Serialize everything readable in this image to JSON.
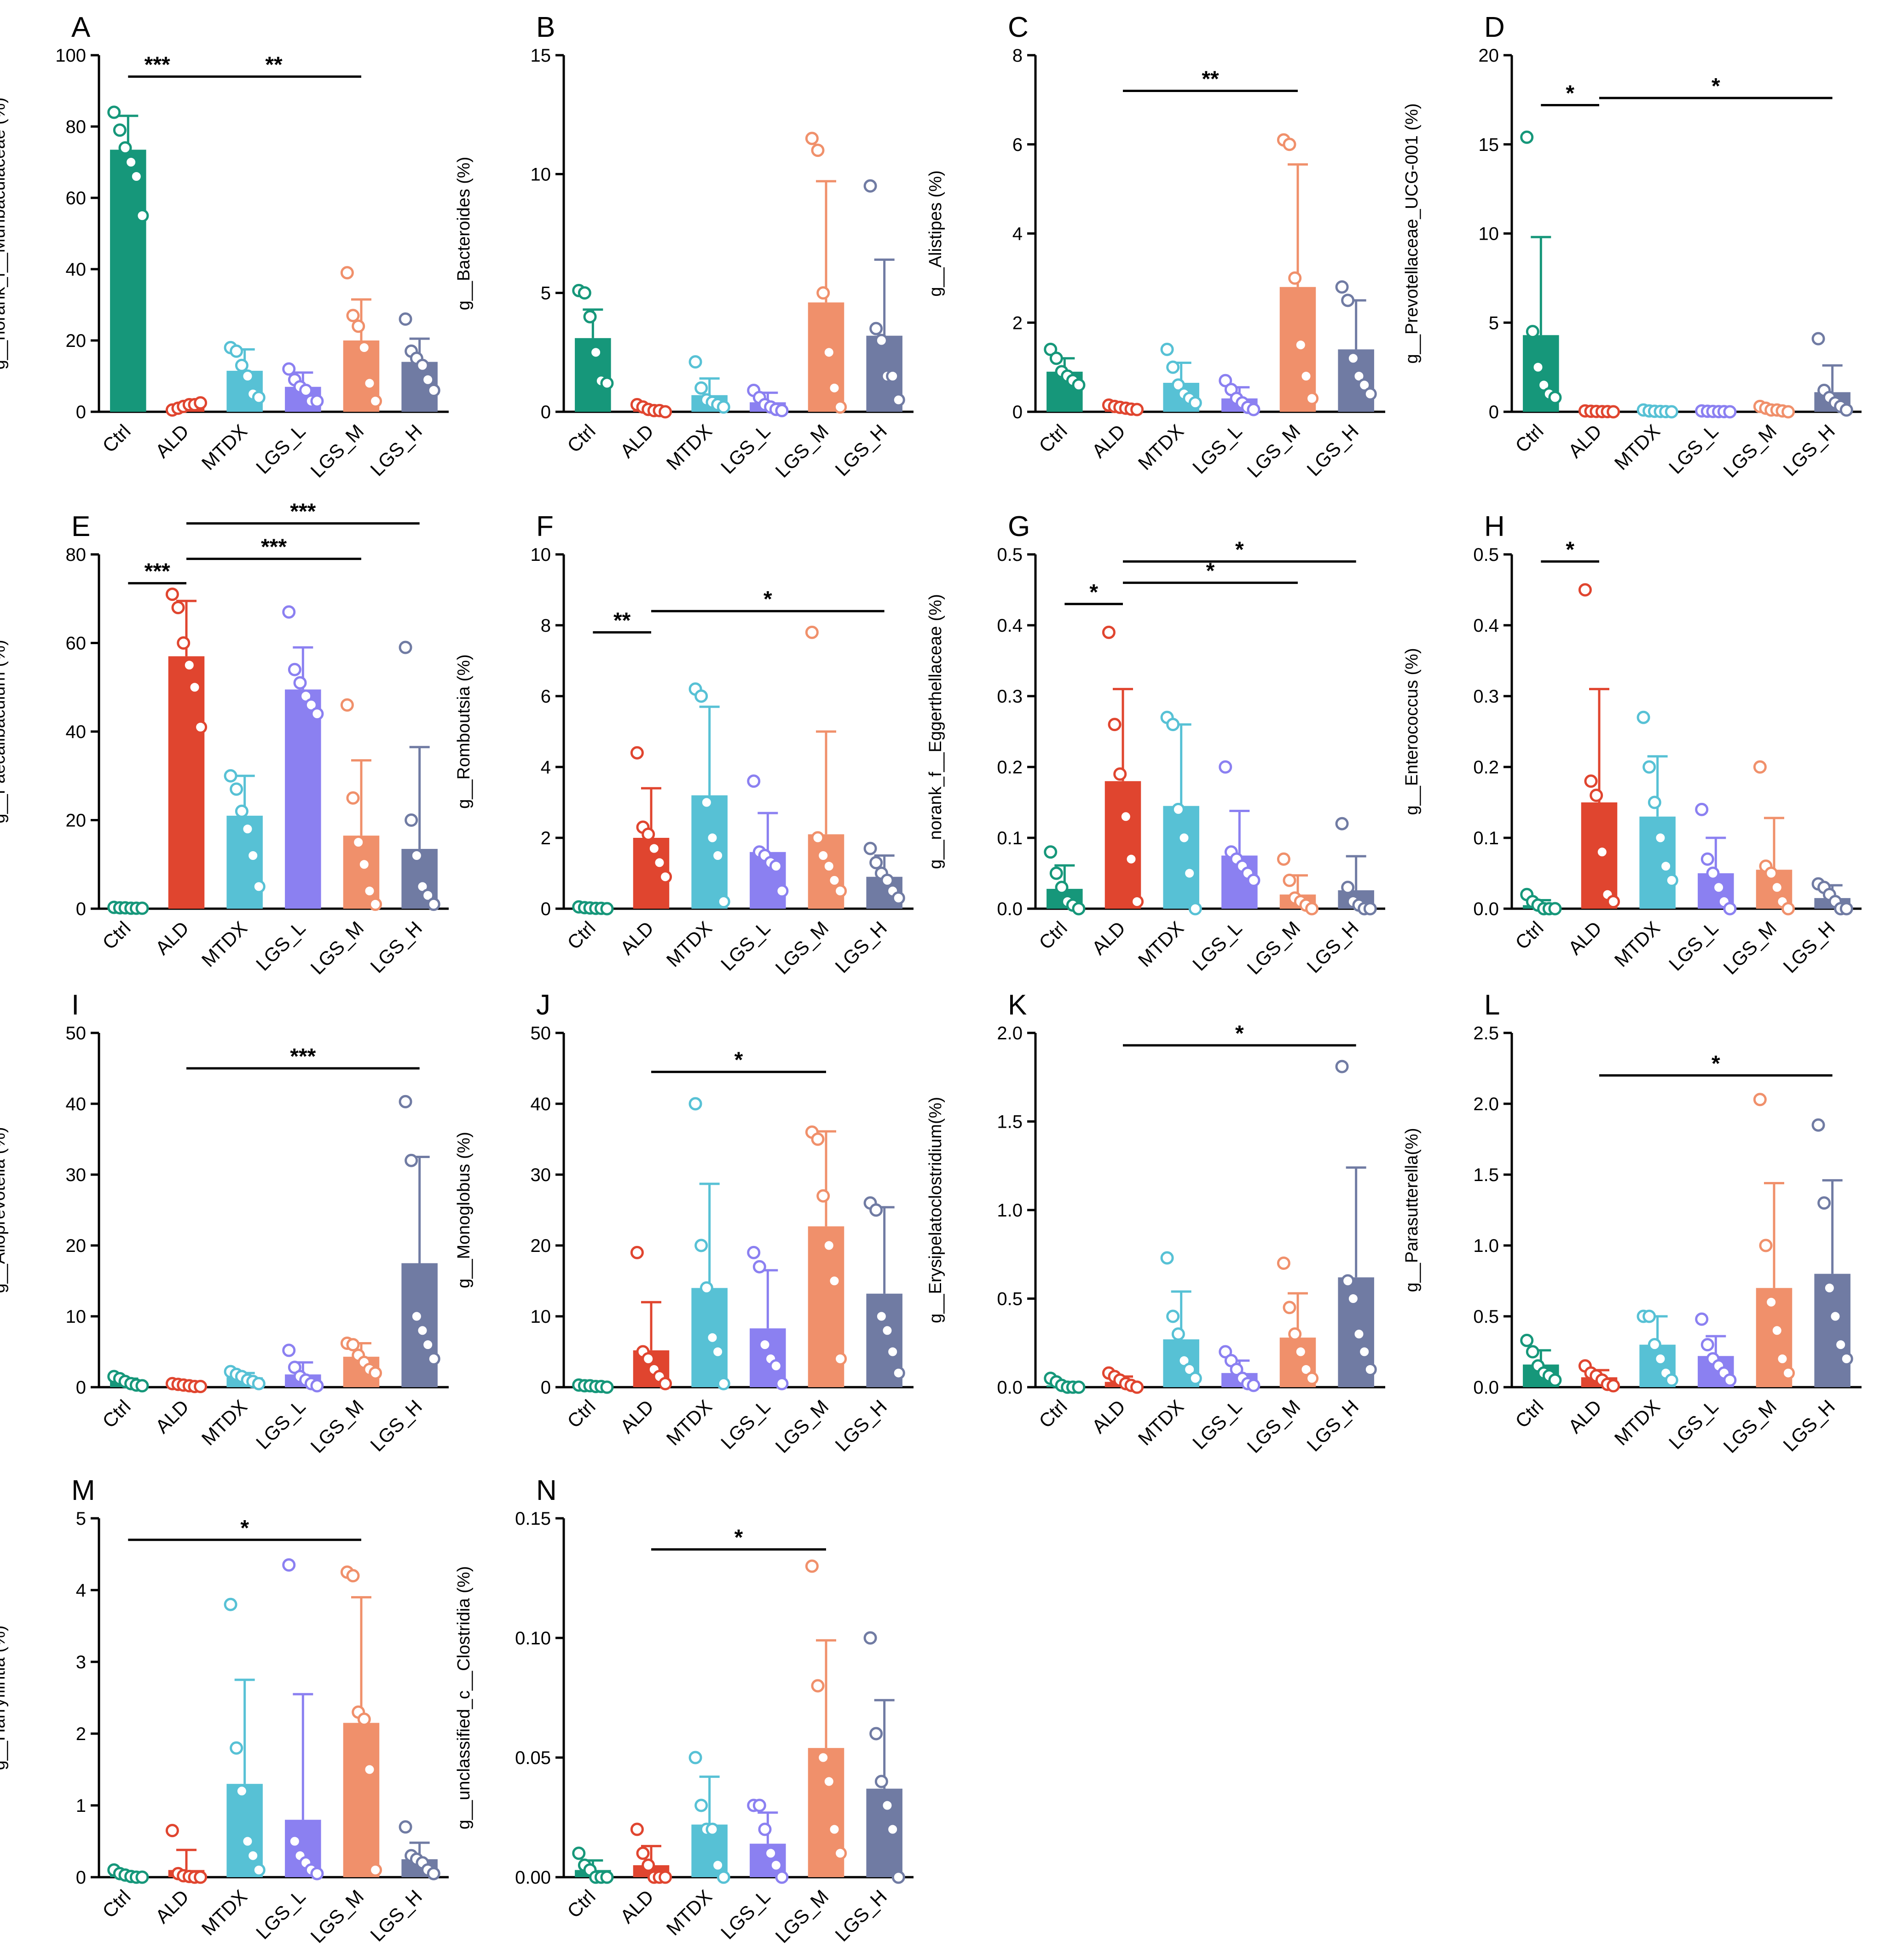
{
  "groups": [
    "Ctrl",
    "ALD",
    "MTDX",
    "LGS_L",
    "LGS_M",
    "LGS_H"
  ],
  "colors": {
    "Ctrl": "#16977A",
    "ALD": "#E0452F",
    "MTDX": "#57C1D5",
    "LGS_L": "#8B80F1",
    "LGS_M": "#F0906B",
    "LGS_H": "#707BA3",
    "axis": "#000000"
  },
  "chart_data": [
    {
      "panel": "A",
      "type": "bar",
      "ylabel": "g__norank_f__Muribaculaceae (%)",
      "ylim": [
        0,
        100
      ],
      "yticks": [
        "0",
        "20",
        "40",
        "60",
        "80",
        "100"
      ],
      "means": [
        73.5,
        1.5,
        11.5,
        7.0,
        20.0,
        14.0
      ],
      "sds": [
        9.5,
        0.8,
        6.0,
        4.0,
        11.5,
        6.5
      ],
      "points": [
        [
          84,
          79,
          74,
          70,
          66,
          55
        ],
        [
          0.5,
          1,
          1.5,
          2,
          2,
          2.5
        ],
        [
          18,
          17,
          13,
          10,
          5,
          4
        ],
        [
          12,
          9,
          7,
          6,
          3,
          3
        ],
        [
          39,
          27,
          24,
          18,
          8,
          3
        ],
        [
          26,
          17,
          15,
          13,
          9,
          6
        ]
      ],
      "sig": [
        {
          "from": 0,
          "to": 1,
          "label": "***",
          "y": 94
        },
        {
          "from": 1,
          "to": 4,
          "label": "**",
          "y": 94
        }
      ]
    },
    {
      "panel": "B",
      "type": "bar",
      "ylabel": "g__Bacteroides (%)",
      "ylim": [
        0,
        15
      ],
      "yticks": [
        "0",
        "5",
        "10",
        "15"
      ],
      "means": [
        3.1,
        0.1,
        0.7,
        0.4,
        4.6,
        3.2
      ],
      "sds": [
        1.2,
        0.1,
        0.7,
        0.4,
        5.1,
        3.2
      ],
      "points": [
        [
          5.1,
          5.0,
          4.0,
          2.5,
          1.3,
          1.2
        ],
        [
          0.3,
          0.2,
          0.1,
          0.05,
          0.05,
          0.0
        ],
        [
          2.1,
          1.0,
          0.5,
          0.4,
          0.3,
          0.2
        ],
        [
          0.9,
          0.6,
          0.3,
          0.2,
          0.1,
          0.05
        ],
        [
          11.5,
          11.0,
          5.0,
          2.5,
          1.0,
          0.2
        ],
        [
          9.5,
          3.5,
          3.0,
          1.5,
          1.5,
          0.5
        ]
      ],
      "sig": []
    },
    {
      "panel": "C",
      "type": "bar",
      "ylabel": "g__Alistipes (%)",
      "ylim": [
        0,
        8
      ],
      "yticks": [
        "0",
        "2",
        "4",
        "6",
        "8"
      ],
      "means": [
        0.9,
        0.1,
        0.65,
        0.3,
        2.8,
        1.4
      ],
      "sds": [
        0.3,
        0.05,
        0.45,
        0.25,
        2.75,
        1.1
      ],
      "points": [
        [
          1.4,
          1.2,
          0.9,
          0.8,
          0.7,
          0.6
        ],
        [
          0.15,
          0.12,
          0.1,
          0.08,
          0.06,
          0.05
        ],
        [
          1.4,
          1.0,
          0.6,
          0.4,
          0.3,
          0.2
        ],
        [
          0.7,
          0.5,
          0.3,
          0.2,
          0.1,
          0.05
        ],
        [
          6.1,
          6.0,
          3.0,
          1.5,
          0.8,
          0.3
        ],
        [
          2.8,
          2.5,
          1.2,
          0.8,
          0.6,
          0.4
        ]
      ],
      "sig": [
        {
          "from": 1,
          "to": 4,
          "label": "**",
          "y": 7.2
        }
      ]
    },
    {
      "panel": "D",
      "type": "bar",
      "ylabel": "g__Prevotellaceae_UCG-001 (%)",
      "ylim": [
        0,
        20
      ],
      "yticks": [
        "0",
        "5",
        "10",
        "15",
        "20"
      ],
      "means": [
        4.3,
        0.02,
        0.02,
        0.02,
        0.1,
        1.1
      ],
      "sds": [
        5.5,
        0.02,
        0.02,
        0.02,
        0.1,
        1.5
      ],
      "points": [
        [
          15.4,
          4.5,
          2.5,
          1.5,
          1.0,
          0.8
        ],
        [
          0.05,
          0.03,
          0.02,
          0.01,
          0.01,
          0.0
        ],
        [
          0.1,
          0.05,
          0.03,
          0.02,
          0.01,
          0.0
        ],
        [
          0.05,
          0.03,
          0.02,
          0.01,
          0.01,
          0.0
        ],
        [
          0.3,
          0.2,
          0.1,
          0.1,
          0.05,
          0.0
        ],
        [
          4.1,
          1.2,
          0.8,
          0.5,
          0.3,
          0.1
        ]
      ],
      "sig": [
        {
          "from": 1,
          "to": 0,
          "label": "*",
          "y": 17.2
        },
        {
          "from": 1,
          "to": 5,
          "label": "*",
          "y": 17.6
        }
      ]
    },
    {
      "panel": "E",
      "type": "bar",
      "ylabel": "g__Faecalibaculum (%)",
      "ylim": [
        0,
        80
      ],
      "yticks": [
        "0",
        "20",
        "40",
        "60",
        "80"
      ],
      "means": [
        0.2,
        57.0,
        21.0,
        49.5,
        16.5,
        13.5
      ],
      "sds": [
        0.1,
        12.5,
        9.0,
        9.5,
        17.0,
        23.0
      ],
      "points": [
        [
          0.3,
          0.2,
          0.2,
          0.1,
          0.1,
          0.1
        ],
        [
          71,
          68,
          60,
          55,
          50,
          41
        ],
        [
          30,
          27,
          22,
          18,
          12,
          5
        ],
        [
          67,
          54,
          51,
          48,
          46,
          44
        ],
        [
          46,
          25,
          15,
          10,
          4,
          1
        ],
        [
          59,
          20,
          12,
          5,
          3,
          1
        ]
      ],
      "sig": [
        {
          "from": 0,
          "to": 1,
          "label": "***",
          "y": 73.5
        },
        {
          "from": 1,
          "to": 4,
          "label": "***",
          "y": 79
        },
        {
          "from": 1,
          "to": 5,
          "label": "***",
          "y": 87
        }
      ]
    },
    {
      "panel": "F",
      "type": "bar",
      "ylabel": "g__Romboutsia (%)",
      "ylim": [
        0,
        10
      ],
      "yticks": [
        "0",
        "2",
        "4",
        "6",
        "8",
        "10"
      ],
      "means": [
        0.02,
        2.0,
        3.2,
        1.6,
        2.1,
        0.9
      ],
      "sds": [
        0.02,
        1.4,
        2.5,
        1.1,
        2.9,
        0.6
      ],
      "points": [
        [
          0.05,
          0.03,
          0.02,
          0.01,
          0.01,
          0.0
        ],
        [
          4.4,
          2.3,
          2.1,
          1.7,
          1.3,
          0.9
        ],
        [
          6.2,
          6.0,
          3.0,
          2.0,
          1.5,
          0.2
        ],
        [
          3.6,
          1.6,
          1.5,
          1.3,
          1.2,
          0.5
        ],
        [
          7.8,
          2.0,
          1.5,
          1.2,
          0.8,
          0.5
        ],
        [
          1.7,
          1.3,
          1.0,
          0.8,
          0.5,
          0.3
        ]
      ],
      "sig": [
        {
          "from": 0,
          "to": 1,
          "label": "**",
          "y": 7.8
        },
        {
          "from": 1,
          "to": 5,
          "label": "*",
          "y": 8.4
        }
      ]
    },
    {
      "panel": "G",
      "type": "bar",
      "ylabel": "g__norank_f__Eggerthellaceae (%)",
      "ylim": [
        0,
        0.5
      ],
      "yticks": [
        "0.0",
        "0.1",
        "0.2",
        "0.3",
        "0.4",
        "0.5"
      ],
      "means": [
        0.028,
        0.18,
        0.145,
        0.075,
        0.02,
        0.026
      ],
      "sds": [
        0.033,
        0.13,
        0.115,
        0.063,
        0.027,
        0.048
      ],
      "points": [
        [
          0.08,
          0.05,
          0.03,
          0.01,
          0.005,
          0.0
        ],
        [
          0.39,
          0.26,
          0.19,
          0.13,
          0.07,
          0.01
        ],
        [
          0.27,
          0.26,
          0.14,
          0.1,
          0.05,
          0.0
        ],
        [
          0.2,
          0.08,
          0.07,
          0.06,
          0.05,
          0.04
        ],
        [
          0.07,
          0.04,
          0.015,
          0.01,
          0.005,
          0.0
        ],
        [
          0.12,
          0.03,
          0.01,
          0.005,
          0.0,
          0.0
        ]
      ],
      "sig": [
        {
          "from": 0,
          "to": 1,
          "label": "*",
          "y": 0.43
        },
        {
          "from": 1,
          "to": 4,
          "label": "*",
          "y": 0.46
        },
        {
          "from": 1,
          "to": 5,
          "label": "*",
          "y": 0.49
        }
      ]
    },
    {
      "panel": "H",
      "type": "bar",
      "ylabel": "g__Enterococcus (%)",
      "ylim": [
        0,
        0.5
      ],
      "yticks": [
        "0.0",
        "0.1",
        "0.2",
        "0.3",
        "0.4",
        "0.5"
      ],
      "means": [
        0.005,
        0.15,
        0.13,
        0.05,
        0.055,
        0.015
      ],
      "sds": [
        0.007,
        0.16,
        0.085,
        0.05,
        0.073,
        0.018
      ],
      "points": [
        [
          0.02,
          0.01,
          0.005,
          0.0,
          0.0,
          0.0
        ],
        [
          0.45,
          0.18,
          0.16,
          0.08,
          0.02,
          0.01
        ],
        [
          0.27,
          0.2,
          0.15,
          0.1,
          0.06,
          0.04
        ],
        [
          0.14,
          0.07,
          0.05,
          0.03,
          0.01,
          0.0
        ],
        [
          0.2,
          0.06,
          0.05,
          0.03,
          0.01,
          0.0
        ],
        [
          0.035,
          0.03,
          0.02,
          0.01,
          0.0,
          0.0
        ]
      ],
      "sig": [
        {
          "from": 0,
          "to": 1,
          "label": "*",
          "y": 0.49
        }
      ]
    },
    {
      "panel": "I",
      "type": "bar",
      "ylabel": "g__Alloprevotella (%)",
      "ylim": [
        0,
        50
      ],
      "yticks": [
        "0",
        "10",
        "20",
        "30",
        "40",
        "50"
      ],
      "means": [
        0.8,
        0.3,
        1.4,
        1.8,
        4.3,
        17.5
      ],
      "sds": [
        0.4,
        0.2,
        0.6,
        1.7,
        1.9,
        15.0
      ],
      "points": [
        [
          1.5,
          1.2,
          0.8,
          0.5,
          0.3,
          0.2
        ],
        [
          0.5,
          0.4,
          0.3,
          0.2,
          0.1,
          0.1
        ],
        [
          2.2,
          1.8,
          1.5,
          1.0,
          0.8,
          0.5
        ],
        [
          5.2,
          2.8,
          1.5,
          1.0,
          0.5,
          0.2
        ],
        [
          6.2,
          6.0,
          4.5,
          3.5,
          2.5,
          2.0
        ],
        [
          40.3,
          32.0,
          10.0,
          8.0,
          6.0,
          4.0
        ]
      ],
      "sig": [
        {
          "from": 1,
          "to": 5,
          "label": "***",
          "y": 45
        }
      ]
    },
    {
      "panel": "J",
      "type": "bar",
      "ylabel": "g__Monoglobus (%)",
      "ylim": [
        0,
        50
      ],
      "yticks": [
        "0",
        "10",
        "20",
        "30",
        "40",
        "50"
      ],
      "means": [
        0.2,
        5.2,
        14.0,
        8.3,
        22.7,
        13.2
      ],
      "sds": [
        0.1,
        6.8,
        14.7,
        8.2,
        13.4,
        12.2
      ],
      "points": [
        [
          0.3,
          0.2,
          0.2,
          0.1,
          0.1,
          0.0
        ],
        [
          19.0,
          5.0,
          4.0,
          2.5,
          1.5,
          0.5
        ],
        [
          40.0,
          20.0,
          14.0,
          7.0,
          5.0,
          0.5
        ],
        [
          19.0,
          17.0,
          6.0,
          4.0,
          3.0,
          0.5
        ],
        [
          36.0,
          35.0,
          27.0,
          20.0,
          15.0,
          4.0
        ],
        [
          26.0,
          25.0,
          10.0,
          8.0,
          5.0,
          2.0
        ]
      ],
      "sig": [
        {
          "from": 1,
          "to": 4,
          "label": "*",
          "y": 44.5
        }
      ]
    },
    {
      "panel": "K",
      "type": "bar",
      "ylabel": "g__Erysipelatoclostridium(%)",
      "ylim": [
        0,
        2.0
      ],
      "yticks": [
        "0.0",
        "0.5",
        "1.0",
        "1.5",
        "2.0"
      ],
      "means": [
        0.01,
        0.03,
        0.27,
        0.08,
        0.28,
        0.62
      ],
      "sds": [
        0.015,
        0.03,
        0.27,
        0.07,
        0.25,
        0.62
      ],
      "points": [
        [
          0.05,
          0.03,
          0.01,
          0.0,
          0.0,
          0.0
        ],
        [
          0.08,
          0.06,
          0.04,
          0.02,
          0.01,
          0.0
        ],
        [
          0.73,
          0.4,
          0.3,
          0.15,
          0.1,
          0.05
        ],
        [
          0.2,
          0.15,
          0.1,
          0.05,
          0.02,
          0.01
        ],
        [
          0.7,
          0.45,
          0.3,
          0.2,
          0.1,
          0.05
        ],
        [
          1.81,
          0.6,
          0.5,
          0.3,
          0.2,
          0.1
        ]
      ],
      "sig": [
        {
          "from": 1,
          "to": 5,
          "label": "*",
          "y": 1.93
        }
      ]
    },
    {
      "panel": "L",
      "type": "bar",
      "ylabel": "g__Parasutterella(%)",
      "ylim": [
        0,
        2.5
      ],
      "yticks": [
        "0.0",
        "0.5",
        "1.0",
        "1.5",
        "2.0",
        "2.5"
      ],
      "means": [
        0.16,
        0.07,
        0.3,
        0.22,
        0.7,
        0.8
      ],
      "sds": [
        0.1,
        0.05,
        0.2,
        0.14,
        0.74,
        0.66
      ],
      "points": [
        [
          0.33,
          0.25,
          0.15,
          0.1,
          0.08,
          0.05
        ],
        [
          0.15,
          0.1,
          0.08,
          0.05,
          0.02,
          0.01
        ],
        [
          0.5,
          0.5,
          0.3,
          0.2,
          0.1,
          0.05
        ],
        [
          0.48,
          0.3,
          0.2,
          0.15,
          0.1,
          0.05
        ],
        [
          2.03,
          1.0,
          0.6,
          0.4,
          0.2,
          0.1
        ],
        [
          1.85,
          1.3,
          0.7,
          0.5,
          0.3,
          0.2
        ]
      ],
      "sig": [
        {
          "from": 1,
          "to": 5,
          "label": "*",
          "y": 2.2
        }
      ]
    },
    {
      "panel": "M",
      "type": "bar",
      "ylabel": "g__Harryflintia (%)",
      "ylim": [
        0,
        5
      ],
      "yticks": [
        "0",
        "1",
        "2",
        "3",
        "4",
        "5"
      ],
      "means": [
        0.03,
        0.1,
        1.3,
        0.8,
        2.15,
        0.25
      ],
      "sds": [
        0.03,
        0.28,
        1.45,
        1.75,
        1.75,
        0.23
      ],
      "points": [
        [
          0.1,
          0.05,
          0.03,
          0.01,
          0.0,
          0.0
        ],
        [
          0.65,
          0.05,
          0.02,
          0.01,
          0.0,
          0.0
        ],
        [
          3.8,
          1.8,
          1.2,
          0.5,
          0.3,
          0.1
        ],
        [
          4.35,
          0.5,
          0.3,
          0.2,
          0.1,
          0.05
        ],
        [
          4.25,
          4.2,
          2.3,
          2.2,
          1.5,
          0.1
        ],
        [
          0.7,
          0.3,
          0.25,
          0.2,
          0.1,
          0.05
        ]
      ],
      "sig": [
        {
          "from": 0,
          "to": 4,
          "label": "*",
          "y": 4.7
        }
      ]
    },
    {
      "panel": "N",
      "type": "bar",
      "ylabel": "g__unclassified_c__Clostridia (%)",
      "ylim": [
        0,
        0.15
      ],
      "yticks": [
        "0.00",
        "0.05",
        "0.10",
        "0.15"
      ],
      "means": [
        0.003,
        0.005,
        0.022,
        0.014,
        0.054,
        0.037
      ],
      "sds": [
        0.004,
        0.008,
        0.02,
        0.013,
        0.045,
        0.037
      ],
      "points": [
        [
          0.01,
          0.005,
          0.003,
          0.0,
          0.0,
          0.0
        ],
        [
          0.02,
          0.01,
          0.005,
          0.0,
          0.0,
          0.0
        ],
        [
          0.05,
          0.03,
          0.02,
          0.02,
          0.005,
          0.0
        ],
        [
          0.03,
          0.03,
          0.02,
          0.01,
          0.005,
          0.0
        ],
        [
          0.13,
          0.08,
          0.05,
          0.04,
          0.02,
          0.01
        ],
        [
          0.1,
          0.06,
          0.04,
          0.03,
          0.02,
          0.0
        ]
      ],
      "sig": [
        {
          "from": 1,
          "to": 4,
          "label": "*",
          "y": 0.137
        }
      ]
    }
  ]
}
